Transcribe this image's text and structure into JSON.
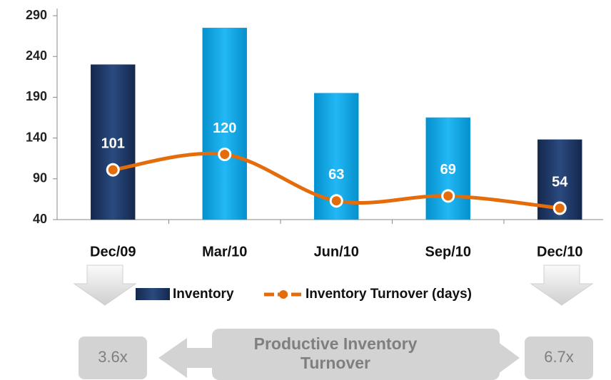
{
  "chart_data": {
    "type": "bar_line",
    "categories": [
      "Dec/09",
      "Mar/10",
      "Jun/10",
      "Sep/10",
      "Dec/10"
    ],
    "series": [
      {
        "name": "Inventory",
        "type": "bar",
        "color": "#1f3b6b",
        "colors": [
          "#1f3b6b",
          "#0ba5e6",
          "#0ba5e6",
          "#0ba5e6",
          "#1f3b6b"
        ],
        "values": [
          230,
          275,
          195,
          165,
          138
        ]
      },
      {
        "name": "Inventory Turnover (days)",
        "type": "line",
        "color": "#e46c0a",
        "values": [
          101,
          120,
          63,
          69,
          54
        ]
      }
    ],
    "ylim": [
      40,
      290
    ],
    "yticks": [
      40,
      90,
      140,
      190,
      240,
      290
    ],
    "annotations": {
      "left": "3.6x",
      "right": "6.7x",
      "center": [
        "Productive Inventory",
        "Turnover"
      ]
    }
  }
}
